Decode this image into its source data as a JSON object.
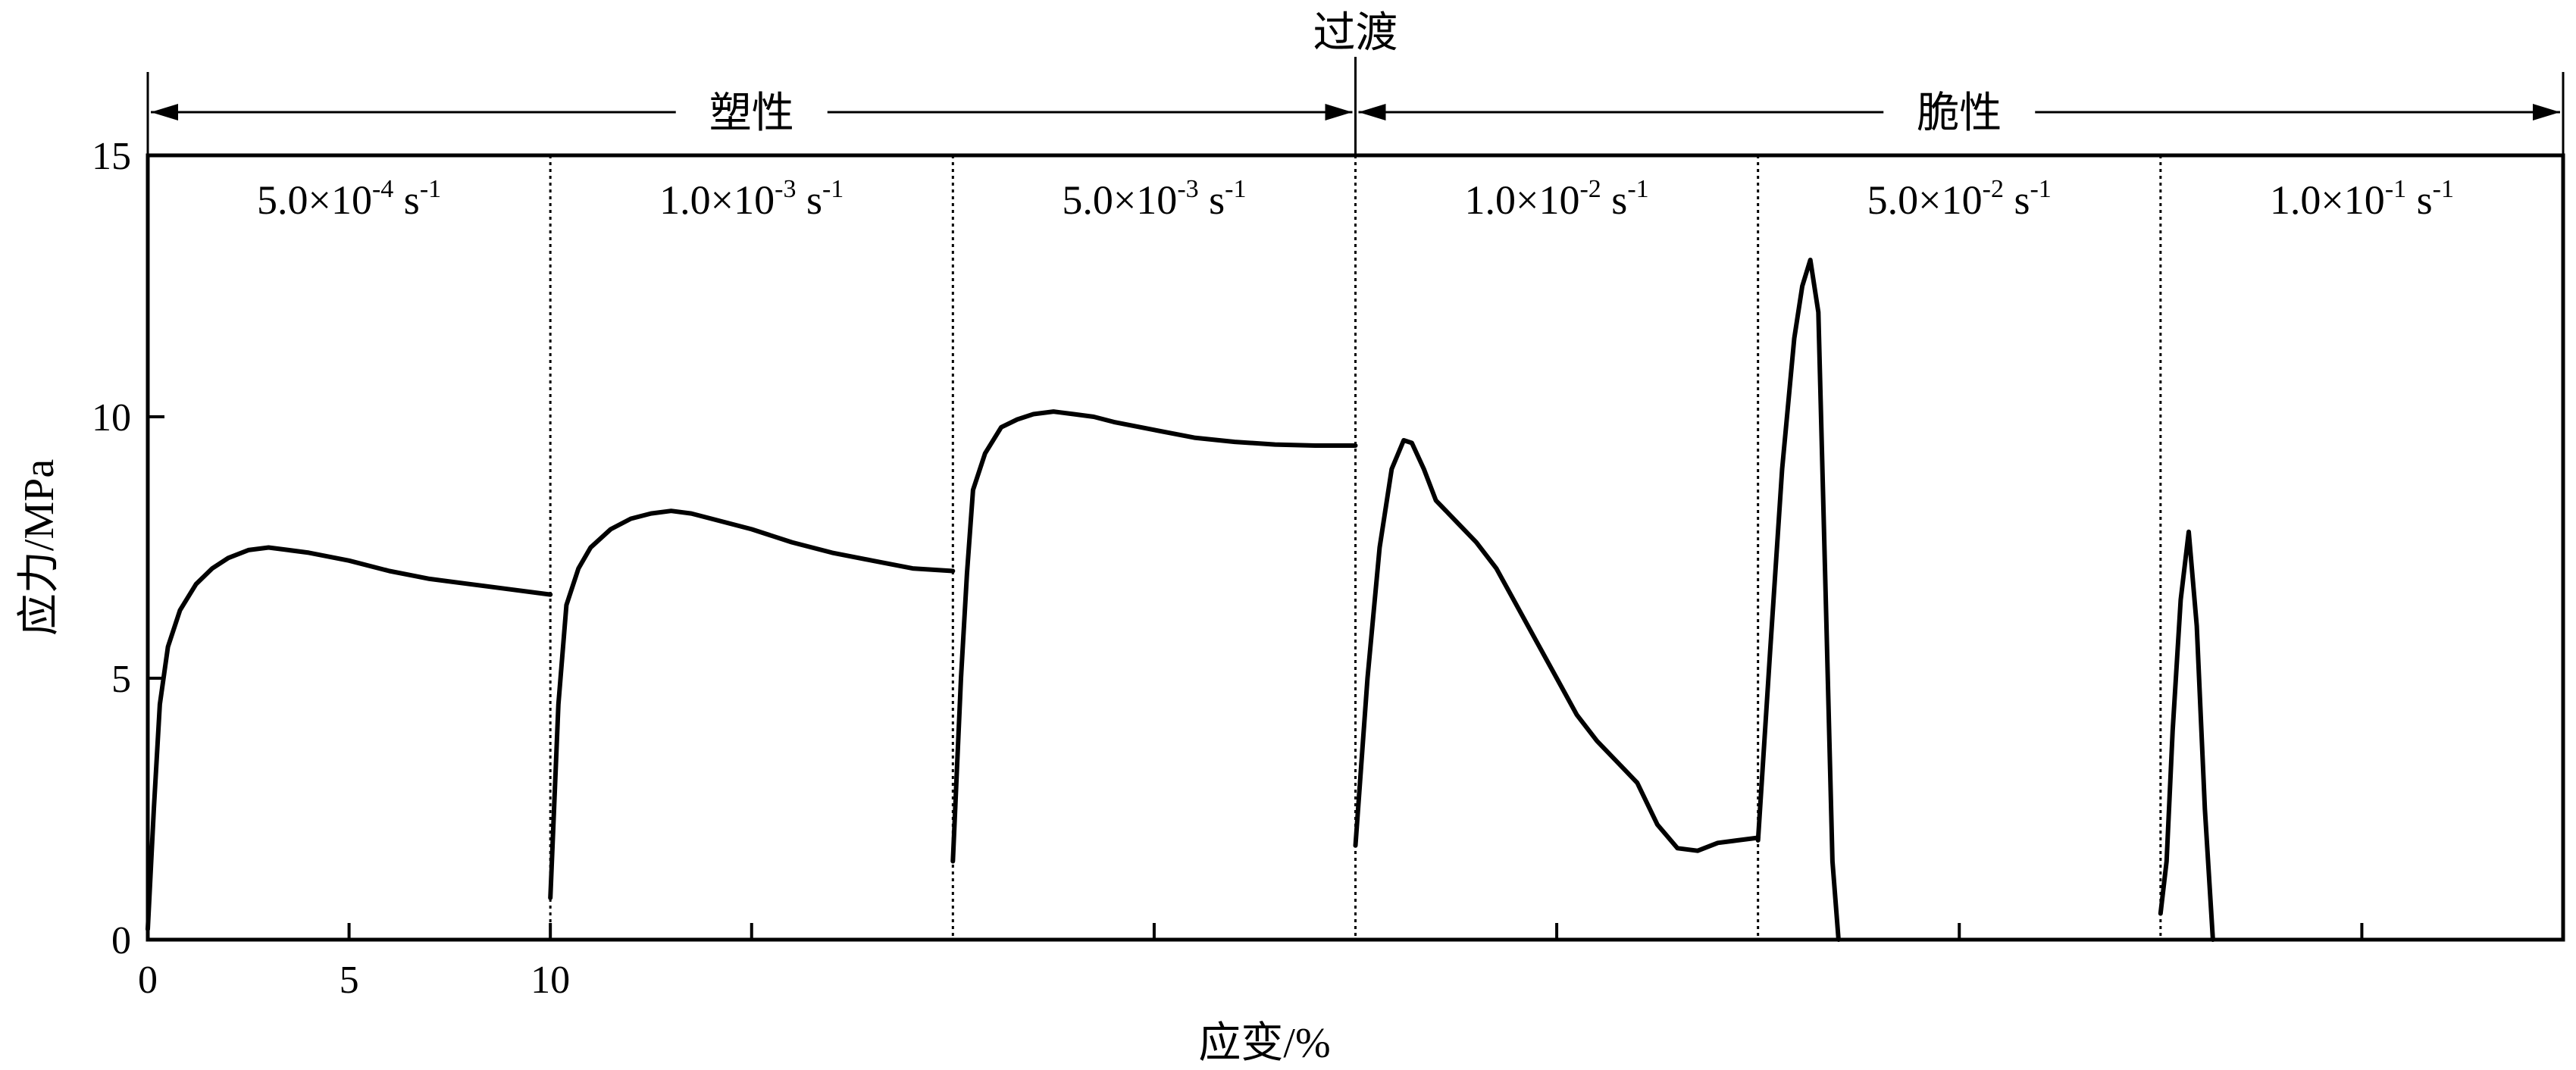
{
  "chart_data": {
    "type": "line",
    "ylabel": "应力/MPa",
    "xlabel": "应变/%",
    "ylim": [
      0,
      15
    ],
    "xlim": [
      0,
      60
    ],
    "y_ticks": [
      0,
      5,
      10,
      15
    ],
    "x_tick_labels": [
      {
        "value": 0,
        "label": "0"
      },
      {
        "value": 5,
        "label": "5"
      },
      {
        "value": 10,
        "label": "10"
      }
    ],
    "x_minor_ticks": [
      15,
      25,
      35,
      45,
      55
    ],
    "grid": false,
    "segment_width": 10,
    "dividers": [
      10,
      20,
      30,
      40,
      50
    ],
    "segments": [
      {
        "rate": {
          "mantissa": "5.0×10",
          "exp": "-4",
          "unit": " s",
          "unit_exp": "-1"
        },
        "x": [
          0,
          0.15,
          0.3,
          0.5,
          0.8,
          1.2,
          1.6,
          2.0,
          2.5,
          3.0,
          3.5,
          4.0,
          5.0,
          6.0,
          7.0,
          8.0,
          9.0,
          10.0
        ],
        "y": [
          0.2,
          2.5,
          4.5,
          5.6,
          6.3,
          6.8,
          7.1,
          7.3,
          7.45,
          7.5,
          7.45,
          7.4,
          7.25,
          7.05,
          6.9,
          6.8,
          6.7,
          6.6
        ]
      },
      {
        "rate": {
          "mantissa": "1.0×10",
          "exp": "-3",
          "unit": " s",
          "unit_exp": "-1"
        },
        "x": [
          10.0,
          10.2,
          10.4,
          10.7,
          11.0,
          11.5,
          12.0,
          12.5,
          13.0,
          13.5,
          14.0,
          15.0,
          16.0,
          17.0,
          18.0,
          19.0,
          20.0
        ],
        "y": [
          0.8,
          4.5,
          6.4,
          7.1,
          7.5,
          7.85,
          8.05,
          8.15,
          8.2,
          8.15,
          8.05,
          7.85,
          7.6,
          7.4,
          7.25,
          7.1,
          7.05
        ]
      },
      {
        "rate": {
          "mantissa": "5.0×10",
          "exp": "-3",
          "unit": " s",
          "unit_exp": "-1"
        },
        "x": [
          20.0,
          20.2,
          20.35,
          20.5,
          20.8,
          21.2,
          21.6,
          22.0,
          22.5,
          23.0,
          23.5,
          24.0,
          25.0,
          26.0,
          27.0,
          28.0,
          29.0,
          30.0
        ],
        "y": [
          1.5,
          5.0,
          7.0,
          8.6,
          9.3,
          9.8,
          9.95,
          10.05,
          10.1,
          10.05,
          10.0,
          9.9,
          9.75,
          9.6,
          9.52,
          9.47,
          9.45,
          9.45
        ]
      },
      {
        "rate": {
          "mantissa": "1.0×10",
          "exp": "-2",
          "unit": " s",
          "unit_exp": "-1"
        },
        "x": [
          30.0,
          30.3,
          30.6,
          30.9,
          31.2,
          31.4,
          31.7,
          32.0,
          32.5,
          33.0,
          33.5,
          34.0,
          34.5,
          35.0,
          35.5,
          36.0,
          36.5,
          37.0,
          37.5,
          38.0,
          38.5,
          39.0,
          39.5,
          40.0
        ],
        "y": [
          1.8,
          5.0,
          7.5,
          9.0,
          9.55,
          9.5,
          9.0,
          8.4,
          8.0,
          7.6,
          7.1,
          6.4,
          5.7,
          5.0,
          4.3,
          3.8,
          3.4,
          3.0,
          2.2,
          1.75,
          1.7,
          1.85,
          1.9,
          1.95
        ]
      },
      {
        "rate": {
          "mantissa": "5.0×10",
          "exp": "-2",
          "unit": " s",
          "unit_exp": "-1"
        },
        "x": [
          40.0,
          40.3,
          40.6,
          40.9,
          41.1,
          41.3,
          41.5,
          41.7,
          41.85,
          42.0
        ],
        "y": [
          1.9,
          5.5,
          9.0,
          11.5,
          12.5,
          13.0,
          12.0,
          6.0,
          1.5,
          0
        ]
      },
      {
        "rate": {
          "mantissa": "1.0×10",
          "exp": "-1",
          "unit": " s",
          "unit_exp": "-1"
        },
        "x": [
          50.0,
          50.15,
          50.3,
          50.5,
          50.7,
          50.9,
          51.1,
          51.3
        ],
        "y": [
          0.5,
          1.5,
          4.0,
          6.5,
          7.8,
          6.0,
          2.5,
          0
        ]
      }
    ],
    "regions": [
      {
        "label": "塑性",
        "from": 0,
        "to": 30
      },
      {
        "label": "脆性",
        "from": 30,
        "to": 60
      }
    ],
    "transition": {
      "label": "过渡",
      "at": 30
    }
  }
}
